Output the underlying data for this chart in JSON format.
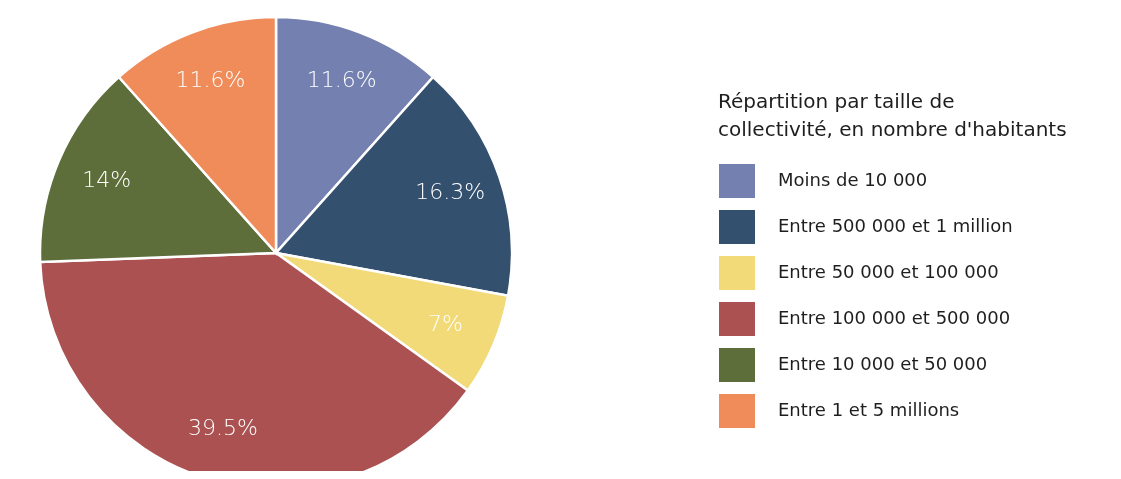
{
  "chart_data": {
    "type": "pie",
    "legend_title": "Répartition par taille de collectivité, en nombre d'habitants",
    "categories": [
      "Moins de 10 000",
      "Entre 500 000 et 1 million",
      "Entre 50 000 et 100 000",
      "Entre 100 000 et 500 000",
      "Entre 10 000 et 50 000",
      "Entre 1 et 5 millions"
    ],
    "values": [
      11.6,
      16.3,
      7,
      39.5,
      14,
      11.6
    ],
    "value_labels": [
      "11.6%",
      "16.3%",
      "7%",
      "39.5%",
      "14%",
      "11.6%"
    ],
    "colors": [
      "#7480b0",
      "#34506f",
      "#f2da78",
      "#ab5151",
      "#5e6e3b",
      "#ef8c5a"
    ],
    "legend": "right"
  }
}
